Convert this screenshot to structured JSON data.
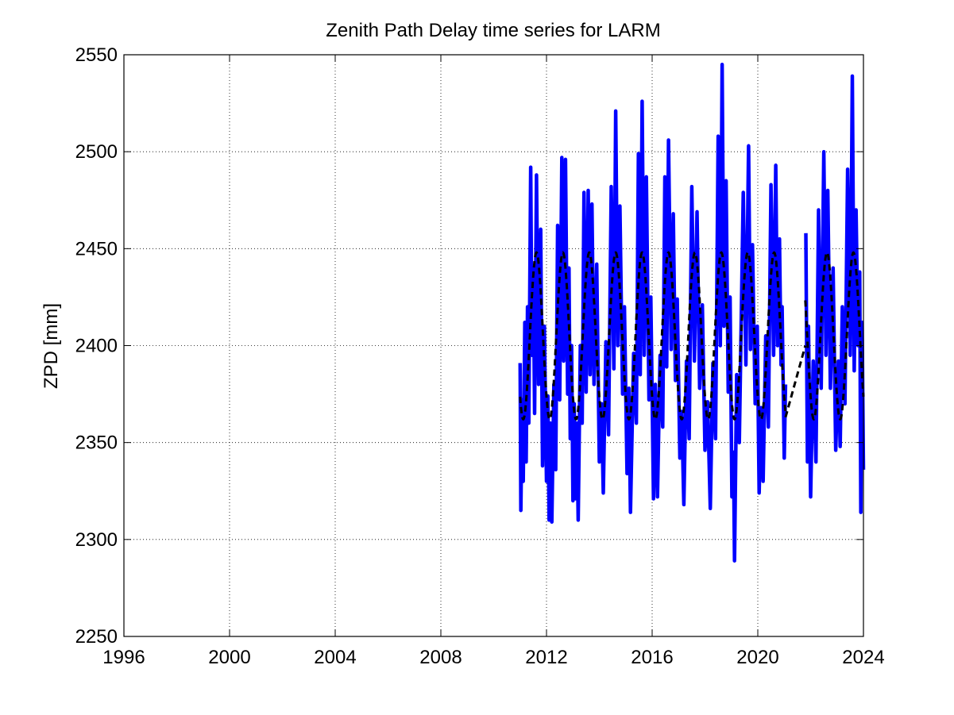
{
  "chart_data": {
    "type": "line",
    "title": "Zenith Path Delay time series for LARM",
    "xlabel": "",
    "ylabel": "ZPD [mm]",
    "xlim": [
      1996,
      2024
    ],
    "ylim": [
      2250,
      2550
    ],
    "xticks": [
      1996,
      2000,
      2004,
      2008,
      2012,
      2016,
      2020,
      2024
    ],
    "yticks": [
      2250,
      2300,
      2350,
      2400,
      2450,
      2500,
      2550
    ],
    "grid": true,
    "colors": {
      "observed": "#0000ff",
      "model": "#000000"
    },
    "series": [
      {
        "style": "solid",
        "color": "#0000ff",
        "description_points": [
          [
            2011.0,
            2391
          ],
          [
            2011.03,
            2315
          ],
          [
            2011.08,
            2372
          ],
          [
            2011.12,
            2330
          ],
          [
            2011.18,
            2412
          ],
          [
            2011.23,
            2340
          ],
          [
            2011.28,
            2420
          ],
          [
            2011.33,
            2360
          ],
          [
            2011.4,
            2492
          ],
          [
            2011.45,
            2395
          ],
          [
            2011.5,
            2440
          ],
          [
            2011.55,
            2365
          ],
          [
            2011.62,
            2488
          ],
          [
            2011.7,
            2380
          ],
          [
            2011.78,
            2460
          ],
          [
            2011.85,
            2338
          ],
          [
            2011.92,
            2410
          ],
          [
            2012.0,
            2330
          ],
          [
            2012.05,
            2374
          ],
          [
            2012.1,
            2310
          ],
          [
            2012.15,
            2360
          ],
          [
            2012.2,
            2309
          ],
          [
            2012.28,
            2380
          ],
          [
            2012.35,
            2336
          ],
          [
            2012.42,
            2462
          ],
          [
            2012.5,
            2372
          ],
          [
            2012.58,
            2497
          ],
          [
            2012.65,
            2392
          ],
          [
            2012.72,
            2496
          ],
          [
            2012.8,
            2375
          ],
          [
            2012.85,
            2440
          ],
          [
            2012.9,
            2352
          ],
          [
            2012.95,
            2400
          ],
          [
            2013.0,
            2320
          ],
          [
            2013.05,
            2370
          ],
          [
            2013.1,
            2321
          ],
          [
            2013.15,
            2360
          ],
          [
            2013.2,
            2310
          ],
          [
            2013.28,
            2400
          ],
          [
            2013.35,
            2360
          ],
          [
            2013.42,
            2479
          ],
          [
            2013.5,
            2376
          ],
          [
            2013.58,
            2480
          ],
          [
            2013.65,
            2385
          ],
          [
            2013.72,
            2473
          ],
          [
            2013.8,
            2380
          ],
          [
            2013.9,
            2442
          ],
          [
            2014.0,
            2340
          ],
          [
            2014.08,
            2370
          ],
          [
            2014.15,
            2324
          ],
          [
            2014.25,
            2402
          ],
          [
            2014.35,
            2354
          ],
          [
            2014.45,
            2482
          ],
          [
            2014.55,
            2388
          ],
          [
            2014.62,
            2521
          ],
          [
            2014.7,
            2400
          ],
          [
            2014.78,
            2472
          ],
          [
            2014.88,
            2375
          ],
          [
            2014.95,
            2420
          ],
          [
            2015.05,
            2334
          ],
          [
            2015.12,
            2378
          ],
          [
            2015.18,
            2314
          ],
          [
            2015.3,
            2396
          ],
          [
            2015.4,
            2360
          ],
          [
            2015.48,
            2499
          ],
          [
            2015.55,
            2385
          ],
          [
            2015.62,
            2526
          ],
          [
            2015.7,
            2395
          ],
          [
            2015.78,
            2487
          ],
          [
            2015.88,
            2372
          ],
          [
            2015.95,
            2425
          ],
          [
            2016.05,
            2321
          ],
          [
            2016.12,
            2380
          ],
          [
            2016.2,
            2322
          ],
          [
            2016.3,
            2395
          ],
          [
            2016.4,
            2358
          ],
          [
            2016.48,
            2487
          ],
          [
            2016.55,
            2389
          ],
          [
            2016.62,
            2506
          ],
          [
            2016.72,
            2398
          ],
          [
            2016.8,
            2468
          ],
          [
            2016.88,
            2382
          ],
          [
            2016.95,
            2424
          ],
          [
            2017.05,
            2342
          ],
          [
            2017.12,
            2366
          ],
          [
            2017.2,
            2318
          ],
          [
            2017.3,
            2392
          ],
          [
            2017.4,
            2352
          ],
          [
            2017.5,
            2482
          ],
          [
            2017.6,
            2392
          ],
          [
            2017.7,
            2469
          ],
          [
            2017.8,
            2378
          ],
          [
            2017.9,
            2421
          ],
          [
            2018.0,
            2346
          ],
          [
            2018.1,
            2371
          ],
          [
            2018.2,
            2316
          ],
          [
            2018.3,
            2391
          ],
          [
            2018.4,
            2352
          ],
          [
            2018.5,
            2508
          ],
          [
            2018.58,
            2400
          ],
          [
            2018.65,
            2545
          ],
          [
            2018.72,
            2410
          ],
          [
            2018.8,
            2485
          ],
          [
            2018.88,
            2376
          ],
          [
            2018.95,
            2425
          ],
          [
            2019.02,
            2322
          ],
          [
            2019.08,
            2345
          ],
          [
            2019.12,
            2289
          ],
          [
            2019.2,
            2385
          ],
          [
            2019.3,
            2350
          ],
          [
            2019.45,
            2479
          ],
          [
            2019.55,
            2390
          ],
          [
            2019.65,
            2503
          ],
          [
            2019.72,
            2398
          ],
          [
            2019.8,
            2452
          ],
          [
            2019.9,
            2370
          ],
          [
            2019.98,
            2410
          ],
          [
            2020.05,
            2324
          ],
          [
            2020.12,
            2368
          ],
          [
            2020.2,
            2330
          ],
          [
            2020.3,
            2405
          ],
          [
            2020.4,
            2358
          ],
          [
            2020.5,
            2483
          ],
          [
            2020.6,
            2395
          ],
          [
            2020.68,
            2493
          ],
          [
            2020.75,
            2400
          ],
          [
            2020.82,
            2455
          ],
          [
            2020.88,
            2390
          ],
          [
            2020.92,
            2420
          ],
          [
            2021.0,
            2342
          ],
          [
            2021.05,
            2380
          ],
          [
            2021.82,
            2458
          ],
          [
            2021.88,
            2340
          ],
          [
            2021.92,
            2410
          ],
          [
            2022.0,
            2322
          ],
          [
            2022.1,
            2392
          ],
          [
            2022.2,
            2340
          ],
          [
            2022.3,
            2470
          ],
          [
            2022.4,
            2378
          ],
          [
            2022.5,
            2500
          ],
          [
            2022.58,
            2395
          ],
          [
            2022.65,
            2480
          ],
          [
            2022.75,
            2378
          ],
          [
            2022.85,
            2440
          ],
          [
            2022.95,
            2346
          ],
          [
            2023.05,
            2392
          ],
          [
            2023.12,
            2348
          ],
          [
            2023.2,
            2420
          ],
          [
            2023.3,
            2370
          ],
          [
            2023.4,
            2491
          ],
          [
            2023.5,
            2395
          ],
          [
            2023.58,
            2539
          ],
          [
            2023.65,
            2387
          ],
          [
            2023.72,
            2470
          ],
          [
            2023.8,
            2400
          ],
          [
            2023.86,
            2438
          ],
          [
            2023.9,
            2314
          ],
          [
            2023.95,
            2412
          ],
          [
            2024.0,
            2336
          ]
        ]
      },
      {
        "style": "dashed",
        "color": "#000000",
        "description": "annual sinusoidal model",
        "mean": 2405,
        "amplitude": 43,
        "period_years": 1,
        "peak_fraction": 0.62,
        "segments": [
          [
            2011.0,
            2021.05
          ],
          [
            2021.8,
            2024.0
          ]
        ],
        "bridge": [
          [
            2021.05,
            2363
          ],
          [
            2021.8,
            2400
          ]
        ]
      }
    ]
  }
}
